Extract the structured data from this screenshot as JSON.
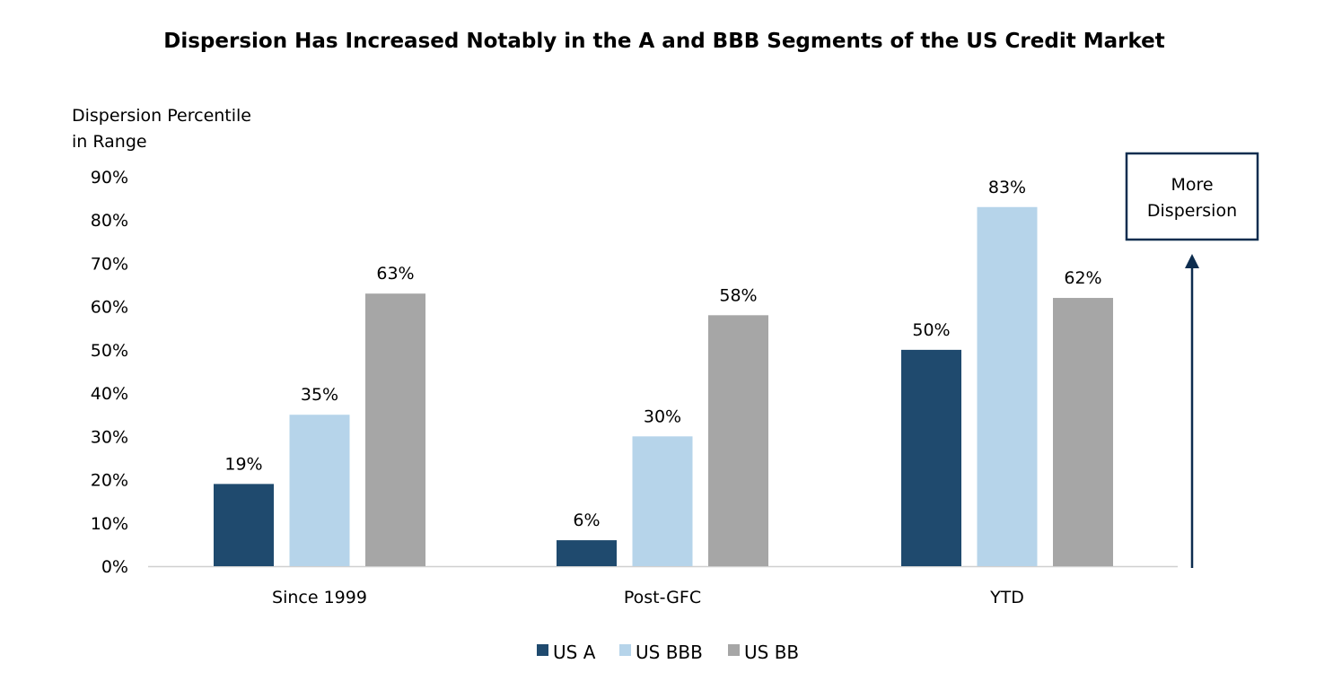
{
  "chart_data": {
    "type": "bar",
    "title": "Dispersion Has Increased Notably in the A and BBB Segments of the US Credit Market",
    "ylabel_lines": [
      "Dispersion Percentile",
      "in Range"
    ],
    "xlabel": "",
    "ylim": [
      0,
      90
    ],
    "yticks": [
      0,
      10,
      20,
      30,
      40,
      50,
      60,
      70,
      80,
      90
    ],
    "ytick_labels": [
      "0%",
      "10%",
      "20%",
      "30%",
      "40%",
      "50%",
      "60%",
      "70%",
      "80%",
      "90%"
    ],
    "grid": false,
    "categories": [
      "Since 1999",
      "Post-GFC",
      "YTD"
    ],
    "series": [
      {
        "name": "US A",
        "color": "#1f4a6e",
        "values": [
          19,
          6,
          50
        ],
        "labels": [
          "19%",
          "6%",
          "50%"
        ]
      },
      {
        "name": "US BBB",
        "color": "#b6d4ea",
        "values": [
          35,
          30,
          83
        ],
        "labels": [
          "35%",
          "30%",
          "83%"
        ]
      },
      {
        "name": "US BB",
        "color": "#a6a6a6",
        "values": [
          63,
          58,
          62
        ],
        "labels": [
          "63%",
          "58%",
          "62%"
        ]
      }
    ],
    "legend_position": "bottom",
    "annotation": {
      "lines": [
        "More",
        "Dispersion"
      ],
      "color": "#0d2d4f",
      "icon": "up-arrow-icon"
    }
  }
}
